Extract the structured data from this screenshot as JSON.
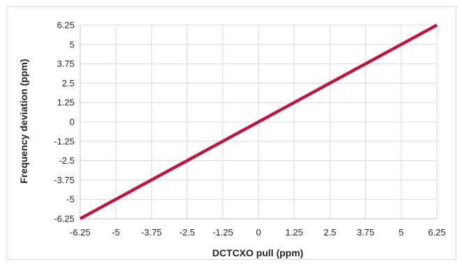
{
  "chart_data": {
    "type": "line",
    "title": "",
    "xlabel": "DCTCXO pull (ppm)",
    "ylabel": "Frequency deviation (ppm)",
    "xlim": [
      -6.25,
      6.25
    ],
    "ylim": [
      -6.25,
      6.25
    ],
    "x_ticks": [
      "-6.25",
      "-5",
      "-3.75",
      "-2.5",
      "-1.25",
      "0",
      "1.25",
      "2.5",
      "3.75",
      "5",
      "6.25"
    ],
    "y_ticks": [
      "6.25",
      "5",
      "3.75",
      "2.5",
      "1.25",
      "0",
      "-1.25",
      "-2.5",
      "-3.75",
      "-5",
      "-6.25"
    ],
    "grid": true,
    "legend": "none",
    "series": [
      {
        "color": "#c0143c",
        "x": [
          -6.25,
          -5,
          -3.75,
          -2.5,
          -1.25,
          0,
          1.25,
          2.5,
          3.75,
          5,
          6.25
        ],
        "y": [
          -6.25,
          -5,
          -3.75,
          -2.5,
          -1.25,
          0,
          1.25,
          2.5,
          3.75,
          5,
          6.25
        ]
      }
    ]
  }
}
